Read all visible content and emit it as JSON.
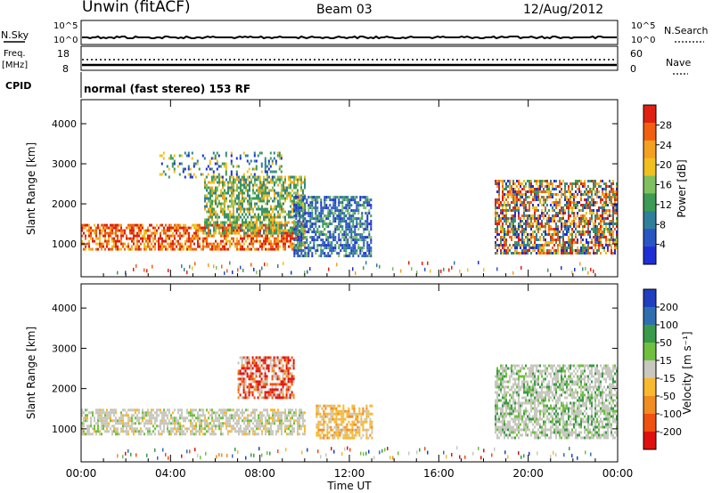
{
  "header": {
    "station": "Unwin (fitACF)",
    "beam": "Beam 03",
    "date": "12/Aug/2012"
  },
  "summary": {
    "nsky_label": "N.Sky",
    "nsky_ticks": [
      "10^5",
      "10^0"
    ],
    "nsearch_label": "N.Search",
    "nsearch_ticks": [
      "10^5",
      "10^0"
    ],
    "freq_label": "Freq.",
    "freq_unit": "[MHz]",
    "freq_ticks": [
      "18",
      "8"
    ],
    "nave_label": "Nave",
    "nave_ticks": [
      "60",
      "0"
    ],
    "cpid_label": "CPID",
    "cpid_text": "normal (fast stereo) 153 RF"
  },
  "colors": {
    "power": [
      "#1f2fd6",
      "#2a56c4",
      "#2f7f9a",
      "#3e9a55",
      "#7fc060",
      "#f0c020",
      "#f4a020",
      "#f06010",
      "#e02010"
    ],
    "velocity": [
      "#1f3fbf",
      "#2f6fb0",
      "#3a9a4a",
      "#70c040",
      "#c8c8c0",
      "#f8b830",
      "#f08c20",
      "#f05010",
      "#e01010"
    ]
  },
  "chart_data": [
    {
      "type": "heatmap",
      "parameter": "Power",
      "xlabel": "",
      "ylabel": "Slant Range [km]",
      "x_ticks": [
        "00:00",
        "04:00",
        "08:00",
        "12:00",
        "16:00",
        "20:00",
        "00:00"
      ],
      "y_ticks": [
        1000,
        2000,
        3000,
        4000
      ],
      "ylim": [
        180,
        4600
      ],
      "colorbar_label": "Power [dB]",
      "colorbar_ticks": [
        4,
        8,
        12,
        16,
        20,
        24,
        28
      ],
      "colorbar_range": [
        0,
        32
      ],
      "echo_regions_hours_km": [
        {
          "t0": 0.0,
          "t1": 10.0,
          "r0": 850,
          "r1": 1500,
          "level": "strong"
        },
        {
          "t0": 5.5,
          "t1": 10.0,
          "r0": 1300,
          "r1": 2700,
          "level": "medium"
        },
        {
          "t0": 9.5,
          "t1": 13.0,
          "r0": 700,
          "r1": 2200,
          "level": "weak"
        },
        {
          "t0": 18.5,
          "t1": 24.0,
          "r0": 800,
          "r1": 2600,
          "level": "mixed"
        },
        {
          "t0": 3.5,
          "t1": 9.0,
          "r0": 2700,
          "r1": 3300,
          "level": "sparse"
        }
      ]
    },
    {
      "type": "heatmap",
      "parameter": "Velocity",
      "xlabel": "Time UT",
      "ylabel": "Slant Range [km]",
      "x_ticks": [
        "00:00",
        "04:00",
        "08:00",
        "12:00",
        "16:00",
        "20:00",
        "00:00"
      ],
      "y_ticks": [
        1000,
        2000,
        3000,
        4000
      ],
      "ylim": [
        180,
        4600
      ],
      "colorbar_label": "Velocity [m s⁻¹]",
      "colorbar_ticks": [
        200,
        100,
        50,
        15,
        -15,
        -50,
        -100,
        -200
      ],
      "echo_regions_hours_km": [
        {
          "t0": 0.0,
          "t1": 10.0,
          "r0": 850,
          "r1": 1500,
          "level": "grey"
        },
        {
          "t0": 7.0,
          "t1": 9.5,
          "r0": 1800,
          "r1": 2800,
          "level": "red"
        },
        {
          "t0": 10.5,
          "t1": 13.0,
          "r0": 800,
          "r1": 1600,
          "level": "orange"
        },
        {
          "t0": 18.5,
          "t1": 24.0,
          "r0": 800,
          "r1": 2600,
          "level": "grey-green"
        }
      ]
    }
  ]
}
